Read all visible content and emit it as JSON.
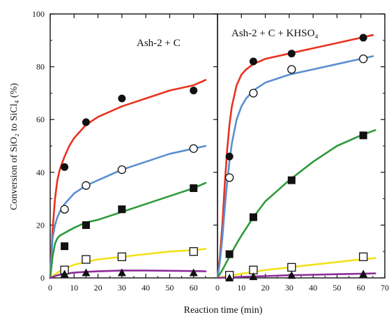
{
  "chart_data": {
    "type": "scatter",
    "xlabel": "Reaction time (min)",
    "ylabel": "Conversion of SiO₂ to SiCl₄ (%)",
    "ylim": [
      0,
      100
    ],
    "yticks": [
      0,
      20,
      40,
      60,
      80,
      100
    ],
    "grid": false,
    "panels": [
      {
        "title": "Ash-2 + C",
        "xlim": [
          0,
          70
        ],
        "xticks": [
          0,
          10,
          20,
          30,
          40,
          50,
          60
        ],
        "series": [
          {
            "marker": "filled-circle",
            "color": "#e8321e",
            "x": [
              6,
              15,
              30,
              60
            ],
            "y": [
              42,
              59,
              68,
              71
            ],
            "fit": {
              "x": [
                0,
                1,
                2,
                3,
                4,
                6,
                8,
                10,
                15,
                20,
                30,
                40,
                50,
                60,
                65
              ],
              "y": [
                0,
                18,
                30,
                37,
                41,
                46,
                50,
                53,
                58,
                61,
                65,
                68,
                71,
                73,
                75
              ]
            }
          },
          {
            "marker": "open-circle",
            "color": "#5b8fd0",
            "x": [
              6,
              15,
              30,
              60
            ],
            "y": [
              26,
              35,
              41,
              49
            ],
            "fit": {
              "x": [
                0,
                1,
                2,
                3,
                4,
                6,
                10,
                15,
                20,
                30,
                40,
                50,
                60,
                65
              ],
              "y": [
                0,
                15,
                20,
                23,
                25,
                28,
                32,
                35,
                37,
                41,
                44,
                47,
                49,
                50
              ]
            }
          },
          {
            "marker": "filled-square",
            "color": "#2e9a3a",
            "x": [
              6,
              15,
              30,
              60
            ],
            "y": [
              12,
              20,
              26,
              34
            ],
            "fit": {
              "x": [
                0,
                1,
                2,
                3,
                4,
                6,
                10,
                15,
                20,
                30,
                40,
                50,
                60,
                65
              ],
              "y": [
                0,
                8,
                13,
                15,
                16,
                17,
                19,
                21,
                22,
                25,
                28,
                31,
                34,
                36
              ]
            }
          },
          {
            "marker": "open-square",
            "color": "#f2e21a",
            "x": [
              6,
              15,
              30,
              60
            ],
            "y": [
              3,
              7,
              8,
              10
            ],
            "fit": {
              "x": [
                0,
                3,
                6,
                10,
                15,
                20,
                30,
                40,
                50,
                60,
                65
              ],
              "y": [
                0,
                2,
                3.5,
                5,
                6,
                7,
                8,
                9,
                10,
                10.5,
                11
              ]
            }
          },
          {
            "marker": "filled-triangle",
            "color": "#8e2d9a",
            "x": [
              6,
              15,
              30,
              60
            ],
            "y": [
              1.5,
              2,
              2,
              2
            ],
            "fit": {
              "x": [
                0,
                3,
                6,
                10,
                15,
                20,
                30,
                40,
                50,
                60,
                65
              ],
              "y": [
                0,
                1,
                1.5,
                2,
                2.3,
                2.5,
                2.8,
                2.8,
                2.7,
                2.6,
                2.5
              ]
            }
          }
        ]
      },
      {
        "title": "Ash-2 + C + KHSO₄",
        "xlim": [
          0,
          70
        ],
        "xticks": [
          0,
          10,
          20,
          30,
          40,
          50,
          60,
          70
        ],
        "series": [
          {
            "marker": "filled-circle",
            "color": "#e8321e",
            "x": [
              5,
              15,
              31,
              61
            ],
            "y": [
              46,
              82,
              85,
              91
            ],
            "fit": {
              "x": [
                0,
                1,
                2,
                3,
                4,
                5,
                6,
                8,
                10,
                12,
                15,
                20,
                30,
                40,
                50,
                60,
                65
              ],
              "y": [
                0,
                8,
                20,
                35,
                48,
                58,
                65,
                73,
                77,
                79,
                81,
                83,
                85,
                87,
                89,
                91,
                92
              ]
            }
          },
          {
            "marker": "open-circle",
            "color": "#5b8fd0",
            "x": [
              5,
              15,
              31,
              61
            ],
            "y": [
              38,
              70,
              79,
              83
            ],
            "fit": {
              "x": [
                0,
                1,
                2,
                3,
                4,
                5,
                6,
                8,
                10,
                12,
                15,
                20,
                30,
                40,
                50,
                60,
                65
              ],
              "y": [
                0,
                6,
                15,
                26,
                36,
                44,
                51,
                60,
                65,
                68,
                71,
                74,
                77,
                79,
                81,
                83,
                84
              ]
            }
          },
          {
            "marker": "filled-square",
            "color": "#2e9a3a",
            "x": [
              5,
              15,
              31,
              61
            ],
            "y": [
              9,
              23,
              37,
              54
            ],
            "fit": {
              "x": [
                0,
                2,
                5,
                8,
                10,
                15,
                20,
                25,
                30,
                40,
                50,
                60,
                66
              ],
              "y": [
                0,
                3,
                8,
                13,
                16,
                23,
                29,
                33,
                37,
                44,
                50,
                54,
                56
              ]
            }
          },
          {
            "marker": "open-square",
            "color": "#f2e21a",
            "x": [
              5,
              15,
              31,
              61
            ],
            "y": [
              1,
              3,
              4,
              8
            ],
            "fit": {
              "x": [
                0,
                5,
                10,
                15,
                20,
                30,
                40,
                50,
                60,
                66
              ],
              "y": [
                0,
                0.8,
                1.6,
                2.3,
                3,
                4,
                5,
                6,
                7,
                7.5
              ]
            }
          },
          {
            "marker": "filled-triangle",
            "color": "#8e2d9a",
            "x": [
              5,
              15,
              31,
              61
            ],
            "y": [
              0,
              0.5,
              1,
              1.5
            ],
            "fit": {
              "x": [
                0,
                10,
                20,
                30,
                40,
                50,
                60,
                66
              ],
              "y": [
                0,
                0.4,
                0.7,
                1,
                1.2,
                1.4,
                1.6,
                1.7
              ]
            }
          }
        ]
      }
    ]
  }
}
